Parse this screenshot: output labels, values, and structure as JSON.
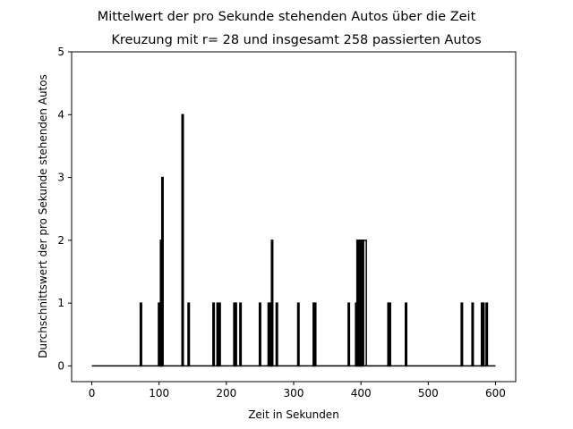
{
  "chart_data": {
    "type": "line",
    "title": "Mittelwert der pro Sekunde stehenden Autos über die Zeit",
    "subtitle": "Kreuzung mit r= 28 und insgesamt 258 passierten Autos",
    "xlabel": "Zeit in Sekunden",
    "ylabel": "Durchschnittswert der pro Sekunde stehenden Autos",
    "xlim": [
      -30,
      630
    ],
    "ylim": [
      -0.25,
      5
    ],
    "xticks": [
      0,
      100,
      200,
      300,
      400,
      500,
      600
    ],
    "yticks": [
      0,
      1,
      2,
      3,
      4,
      5
    ],
    "grid": false,
    "color": "#000000",
    "series": [
      {
        "pulses": [
          [
            73,
            1
          ],
          [
            100,
            1
          ],
          [
            102,
            1
          ],
          [
            103,
            2
          ],
          [
            105,
            3
          ],
          [
            135,
            4
          ],
          [
            144,
            1
          ],
          [
            181,
            1
          ],
          [
            187,
            1
          ],
          [
            190,
            1
          ],
          [
            212,
            1
          ],
          [
            214,
            1
          ],
          [
            221,
            1
          ],
          [
            250,
            1
          ],
          [
            263,
            1
          ],
          [
            266,
            1
          ],
          [
            268,
            2
          ],
          [
            275,
            1
          ],
          [
            307,
            1
          ],
          [
            330,
            1
          ],
          [
            332,
            1
          ],
          [
            382,
            1
          ],
          [
            393,
            1
          ],
          [
            395,
            2
          ],
          [
            397,
            2
          ],
          [
            399,
            2
          ],
          [
            401,
            2
          ],
          [
            403,
            2
          ],
          [
            441,
            1
          ],
          [
            443,
            1
          ],
          [
            467,
            1
          ],
          [
            550,
            1
          ],
          [
            566,
            1
          ],
          [
            580,
            1
          ],
          [
            582,
            1
          ],
          [
            587,
            1
          ]
        ],
        "plateau": [
          401,
          408,
          2
        ]
      }
    ],
    "x_range": [
      0,
      600
    ]
  }
}
